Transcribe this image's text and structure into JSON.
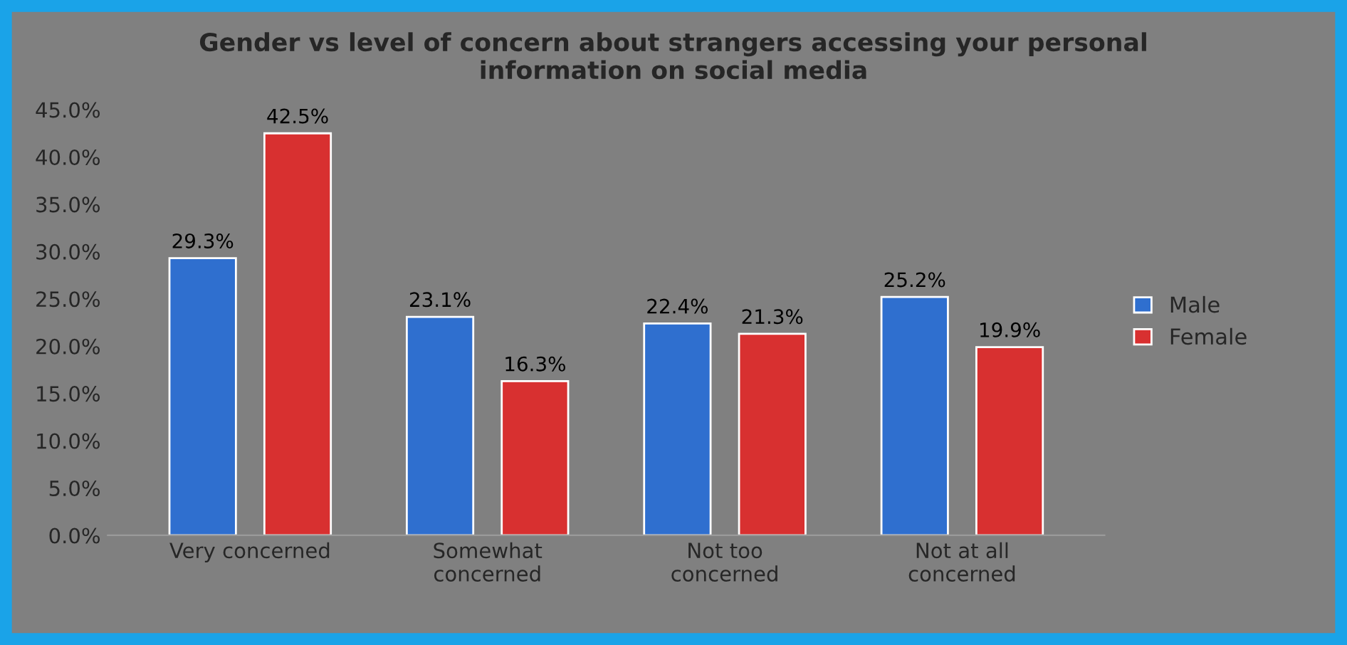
{
  "chart_data": {
    "type": "bar",
    "title": "Gender vs level of concern about strangers accessing your personal\ninformation on social media",
    "categories": [
      "Very concerned",
      "Somewhat\nconcerned",
      "Not too\nconcerned",
      "Not at all\nconcerned"
    ],
    "series": [
      {
        "name": "Male",
        "color": "#2f6fcf",
        "values": [
          29.3,
          23.1,
          22.4,
          25.2
        ],
        "value_labels": [
          "29.3%",
          "23.1%",
          "22.4%",
          "25.2%"
        ]
      },
      {
        "name": "Female",
        "color": "#d83030",
        "values": [
          42.5,
          16.3,
          21.3,
          19.9
        ],
        "value_labels": [
          "42.5%",
          "16.3%",
          "21.3%",
          "19.9%"
        ]
      }
    ],
    "ylim": [
      0,
      45
    ],
    "yticks": [
      {
        "value": 0,
        "label": "0.0%"
      },
      {
        "value": 5,
        "label": "5.0%"
      },
      {
        "value": 10,
        "label": "10.0%"
      },
      {
        "value": 15,
        "label": "15.0%"
      },
      {
        "value": 20,
        "label": "20.0%"
      },
      {
        "value": 25,
        "label": "25.0%"
      },
      {
        "value": 30,
        "label": "30.0%"
      },
      {
        "value": 35,
        "label": "35.0%"
      },
      {
        "value": 40,
        "label": "40.0%"
      },
      {
        "value": 45,
        "label": "45.0%"
      }
    ],
    "grid": false,
    "legend": "right"
  }
}
